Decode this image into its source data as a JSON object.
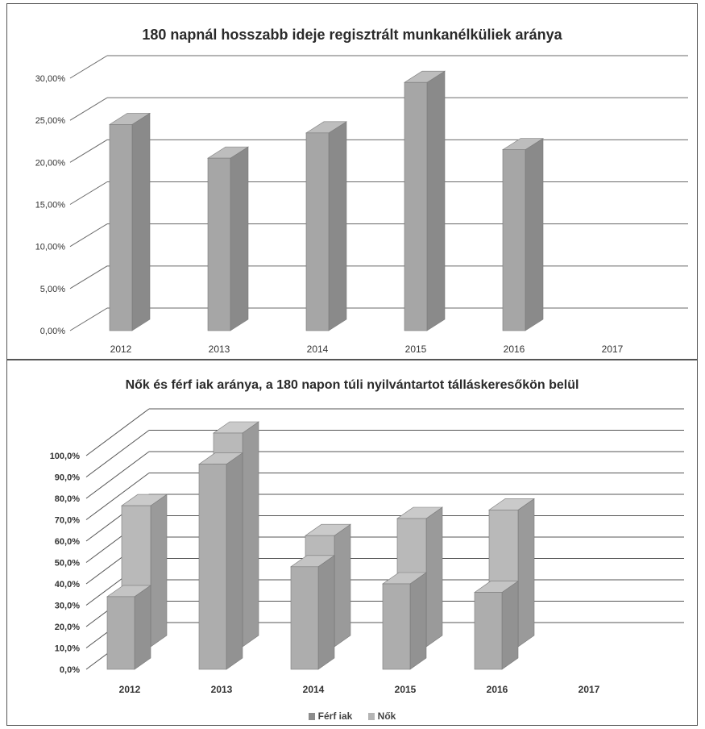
{
  "chart_data": [
    {
      "type": "bar",
      "title": "180 napnál hosszabb ideje regisztrált munkanélküliek aránya",
      "categories": [
        "2012",
        "2013",
        "2014",
        "2015",
        "2016",
        "2017"
      ],
      "values": [
        24.5,
        20.5,
        23.5,
        29.5,
        21.5,
        null
      ],
      "ylim": [
        0,
        30
      ],
      "ytick_labels": [
        "0,00%",
        "5,00%",
        "10,00%",
        "15,00%",
        "20,00%",
        "25,00%",
        "30,00%"
      ],
      "grid": true,
      "colors": {
        "bar": "#a6a6a6",
        "bar_side": "#8a8a8a",
        "bar_top": "#bdbdbd"
      }
    },
    {
      "type": "bar",
      "title": "Nők és férf iak aránya, a 180 napon túli nyilvántartot tálláskeresőkön belül",
      "categories": [
        "2012",
        "2013",
        "2014",
        "2015",
        "2016",
        "2017"
      ],
      "series": [
        {
          "name": "Férf iak",
          "values": [
            34,
            96,
            48,
            40,
            36,
            null
          ]
        },
        {
          "name": "Nők",
          "values": [
            66,
            100,
            52,
            60,
            64,
            null
          ]
        }
      ],
      "ylim": [
        0,
        100
      ],
      "ytick_labels": [
        "0,0%",
        "10,0%",
        "20,0%",
        "30,0%",
        "40,0%",
        "50,0%",
        "60,0%",
        "70,0%",
        "80,0%",
        "90,0%",
        "100,0%"
      ],
      "legend_position": "bottom",
      "grid": true,
      "colors": {
        "front": "#adadad",
        "back": "#b9b9b9"
      }
    }
  ]
}
